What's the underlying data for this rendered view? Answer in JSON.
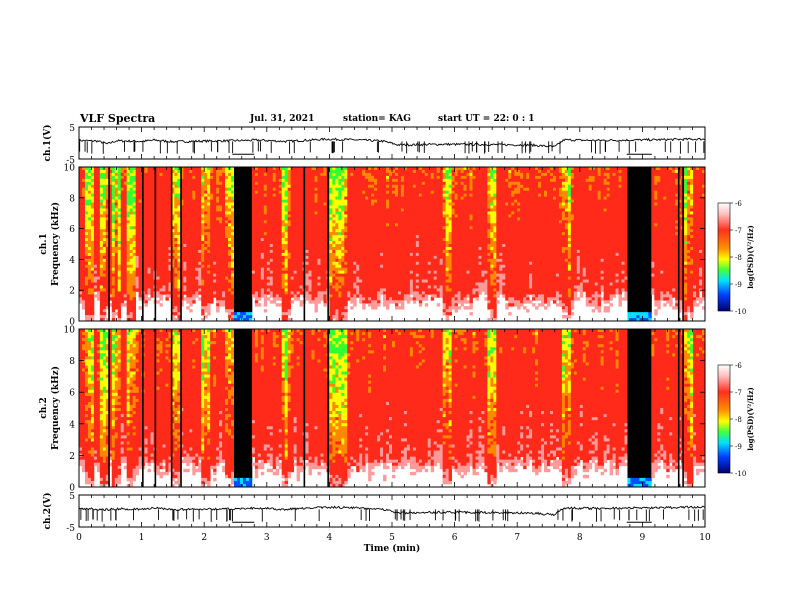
{
  "header": {
    "title": "VLF Spectra",
    "date": "Jul. 31, 2021",
    "station": "station= KAG",
    "start_ut": "start UT =  22: 0 : 1"
  },
  "colors": {
    "spectrogram_ramp": [
      "#00008c",
      "#0050ff",
      "#00e0ff",
      "#33ff33",
      "#ffff00",
      "#ff8800",
      "#ff2a1a",
      "#ffffff"
    ],
    "saturated": "#000000",
    "line": "#000000"
  },
  "chart_data": [
    {
      "type": "line",
      "name": "ch1-waveform",
      "ylabel": "ch.1(V)",
      "ylim": [
        -5,
        5
      ],
      "yticks": [
        "5",
        "-5"
      ],
      "xlim": [
        0,
        10
      ],
      "x": [
        0,
        0.3,
        0.45,
        0.6,
        1.0,
        1.2,
        1.5,
        2.0,
        2.45,
        2.85,
        3.3,
        3.95,
        4.4,
        4.85,
        5.1,
        5.8,
        6.5,
        7.2,
        7.6,
        7.75,
        8.2,
        8.75,
        9.15,
        9.5,
        9.9
      ],
      "y": [
        0.8,
        0.6,
        -0.3,
        0.7,
        0.5,
        0.9,
        0.4,
        0.6,
        0.7,
        0.9,
        0.5,
        1.2,
        1.0,
        0.6,
        -0.6,
        -0.4,
        -0.5,
        -0.6,
        -1.2,
        1.0,
        0.8,
        0.9,
        1.0,
        1.1,
        1.2
      ]
    },
    {
      "type": "heatmap",
      "name": "ch1-spectrogram",
      "ylabel": "ch.1 Frequency (kHz)",
      "ylim": [
        0,
        10
      ],
      "yticks": [
        "0",
        "2",
        "4",
        "6",
        "8",
        "10"
      ],
      "xlim": [
        0,
        10
      ],
      "colorbar": {
        "label": "log(PSD)(V²/Hz)",
        "range": [
          -10,
          -6
        ],
        "ticks": [
          "-6",
          "-7",
          "-8",
          "-9",
          "-10"
        ]
      },
      "saturated_blocks_min": [
        [
          2.48,
          2.78
        ],
        [
          8.75,
          9.15
        ]
      ],
      "dark_lines_min": [
        0.48,
        1.02,
        1.22,
        1.48,
        1.63,
        3.6,
        3.98,
        9.58,
        9.65
      ],
      "bright_lines_min": [
        0.15,
        0.42,
        0.58,
        0.82,
        1.55,
        2.02,
        2.4,
        3.3,
        4.05,
        4.2,
        5.9,
        6.6,
        7.8,
        9.75
      ]
    },
    {
      "type": "heatmap",
      "name": "ch2-spectrogram",
      "ylabel": "ch.2 Frequency (kHz)",
      "ylim": [
        0,
        10
      ],
      "yticks": [
        "0",
        "2",
        "4",
        "6",
        "8",
        "10"
      ],
      "xlim": [
        0,
        10
      ],
      "colorbar": {
        "label": "log(PSD)(V²/Hz)",
        "range": [
          -10,
          -6
        ],
        "ticks": [
          "-6",
          "-7",
          "-8",
          "-9",
          "-10"
        ]
      },
      "saturated_blocks_min": [
        [
          2.48,
          2.78
        ],
        [
          8.75,
          9.15
        ]
      ],
      "dark_lines_min": [
        0.48,
        1.02,
        1.22,
        1.48,
        1.63,
        3.6,
        3.98,
        9.58,
        9.65
      ],
      "bright_lines_min": [
        0.15,
        0.42,
        0.58,
        0.82,
        1.55,
        2.02,
        2.4,
        3.3,
        4.05,
        4.2,
        5.9,
        6.6,
        7.8,
        9.75
      ]
    },
    {
      "type": "line",
      "name": "ch2-waveform",
      "ylabel": "ch.2(V)",
      "ylim": [
        -5,
        5
      ],
      "yticks": [
        "5",
        "-5"
      ],
      "xlabel": "Time (min)",
      "xlim": [
        0,
        10
      ],
      "xticks": [
        "0",
        "1",
        "2",
        "3",
        "4",
        "5",
        "6",
        "7",
        "8",
        "9",
        "10"
      ],
      "x": [
        0,
        0.3,
        0.45,
        0.6,
        1.0,
        1.2,
        1.5,
        2.0,
        2.45,
        2.85,
        3.3,
        3.95,
        4.4,
        4.85,
        5.1,
        5.8,
        6.5,
        7.2,
        7.6,
        7.75,
        8.2,
        8.75,
        9.15,
        9.5,
        9.9
      ],
      "y": [
        0.8,
        0.6,
        0.4,
        0.7,
        0.5,
        0.9,
        0.4,
        0.6,
        0.7,
        0.9,
        0.5,
        1.2,
        1.0,
        0.6,
        -0.6,
        -0.4,
        -0.5,
        -0.6,
        -1.2,
        1.0,
        0.8,
        0.9,
        1.0,
        1.1,
        1.2
      ]
    }
  ]
}
